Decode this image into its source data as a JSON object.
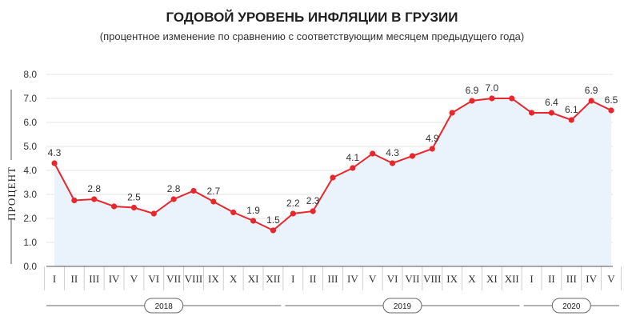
{
  "chart_data": {
    "type": "line",
    "title": "ГОДОВОЙ УРОВЕНЬ ИНФЛЯЦИИ В ГРУЗИИ",
    "subtitle": "(процентное изменение по сравнению с соответствующим месяцем предыдущего года)",
    "ylabel": "ПРОЦЕНТ",
    "ylim": [
      0,
      8
    ],
    "yticks": [
      "0.0",
      "1.0",
      "2.0",
      "3.0",
      "4.0",
      "5.0",
      "6.0",
      "7.0",
      "8.0"
    ],
    "grid": true,
    "categories": [
      "I",
      "II",
      "III",
      "IV",
      "V",
      "VI",
      "VII",
      "VIII",
      "IX",
      "X",
      "XI",
      "XII",
      "I",
      "II",
      "III",
      "IV",
      "V",
      "VI",
      "VII",
      "VIII",
      "IX",
      "X",
      "XI",
      "XII",
      "I",
      "II",
      "III",
      "IV",
      "V"
    ],
    "years": [
      {
        "label": "2018",
        "start": 0,
        "end": 11
      },
      {
        "label": "2019",
        "start": 12,
        "end": 23
      },
      {
        "label": "2020",
        "start": 24,
        "end": 28
      }
    ],
    "series": [
      {
        "values": [
          4.3,
          2.75,
          2.8,
          2.5,
          2.45,
          2.2,
          2.8,
          3.15,
          2.7,
          2.25,
          1.9,
          1.5,
          2.2,
          2.3,
          3.7,
          4.1,
          4.7,
          4.3,
          4.6,
          4.9,
          6.4,
          6.9,
          7.0,
          7.0,
          6.4,
          6.4,
          6.1,
          6.9,
          6.5
        ],
        "labels": [
          "4.3",
          "",
          "2.8",
          "",
          "2.5",
          "",
          "2.8",
          "",
          "2.7",
          "",
          "1.9",
          "1.5",
          "2.2",
          "2.3",
          "",
          "4.1",
          "",
          "4.3",
          "",
          "4.9",
          "",
          "6.9",
          "7.0",
          "",
          "",
          "6.4",
          "6.1",
          "6.9",
          "6.5"
        ]
      }
    ],
    "colors": {
      "line": "#e8262c",
      "area": "#eaf3fb",
      "grid": "#e3e3e3",
      "axis": "#555555"
    }
  }
}
